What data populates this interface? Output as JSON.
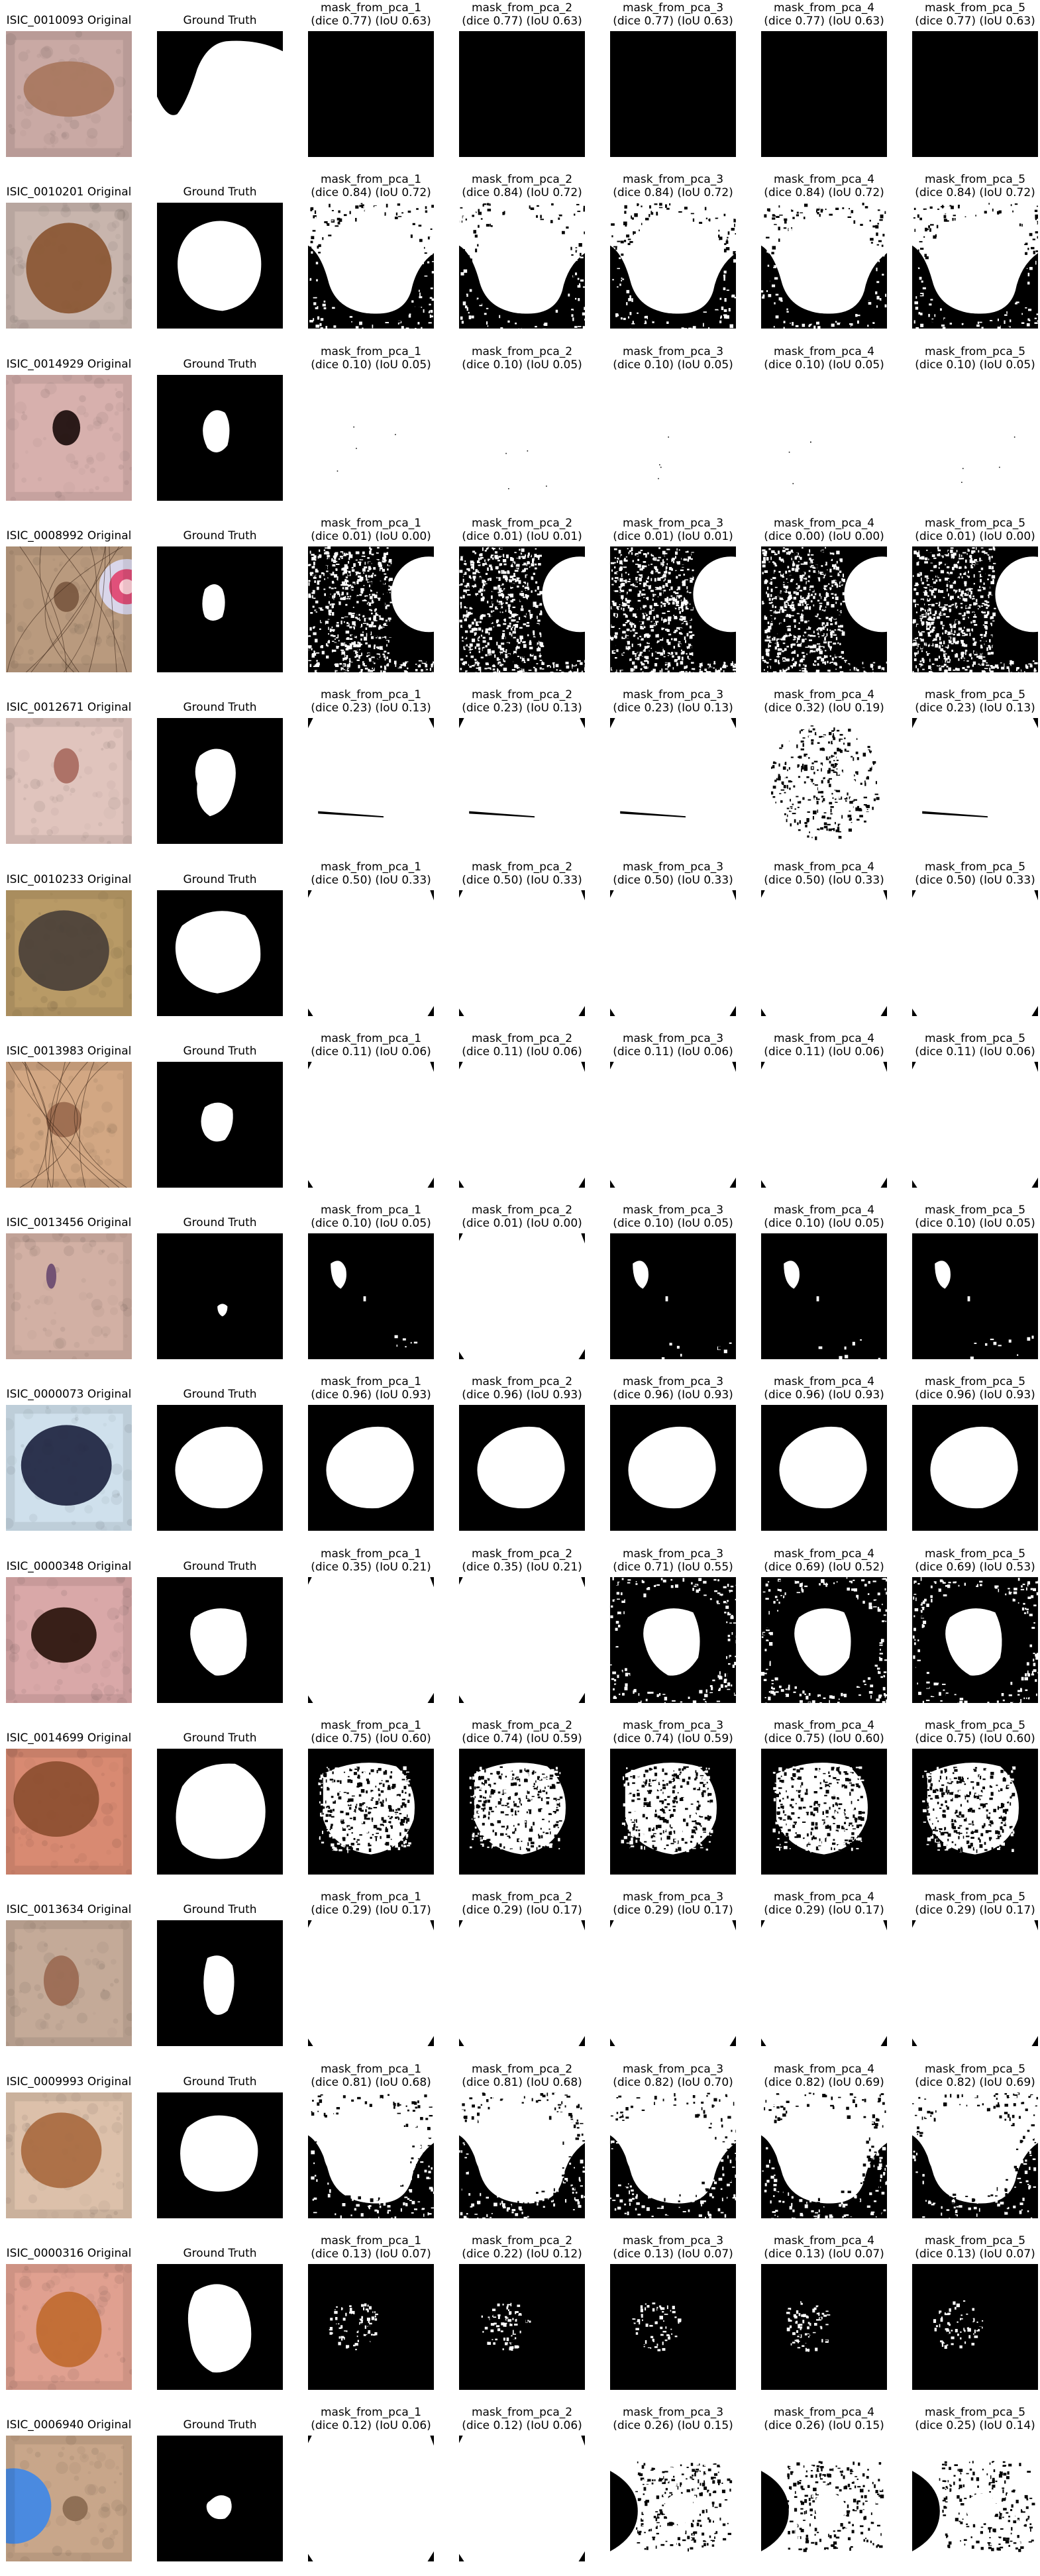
{
  "figure": {
    "gt_label": "Ground Truth",
    "colors": {
      "mask_fg": "#ffffff",
      "mask_bg": "#000000"
    },
    "rows": [
      {
        "id": "ISIC_0010093",
        "original": "ISIC_0010093 Original",
        "skin": "#c9a9a4",
        "lesion": "#a8775e",
        "masks": [
          {
            "name": "mask_from_pca_1",
            "score": "(dice 0.77) (IoU 0.63)"
          },
          {
            "name": "mask_from_pca_2",
            "score": "(dice 0.77) (IoU 0.63)"
          },
          {
            "name": "mask_from_pca_3",
            "score": "(dice 0.77) (IoU 0.63)"
          },
          {
            "name": "mask_from_pca_4",
            "score": "(dice 0.77) (IoU 0.63)"
          },
          {
            "name": "mask_from_pca_5",
            "score": "(dice 0.77) (IoU 0.63)"
          }
        ]
      },
      {
        "id": "ISIC_0010201",
        "original": "ISIC_0010201 Original",
        "skin": "#c8b5ad",
        "lesion": "#8a5632",
        "masks": [
          {
            "name": "mask_from_pca_1",
            "score": "(dice 0.84) (IoU 0.72)"
          },
          {
            "name": "mask_from_pca_2",
            "score": "(dice 0.84) (IoU 0.72)"
          },
          {
            "name": "mask_from_pca_3",
            "score": "(dice 0.84) (IoU 0.72)"
          },
          {
            "name": "mask_from_pca_4",
            "score": "(dice 0.84) (IoU 0.72)"
          },
          {
            "name": "mask_from_pca_5",
            "score": "(dice 0.84) (IoU 0.72)"
          }
        ]
      },
      {
        "id": "ISIC_0014929",
        "original": "ISIC_0014929 Original",
        "skin": "#d7b0ad",
        "lesion": "#1c0d0c",
        "masks": [
          {
            "name": "mask_from_pca_1",
            "score": "(dice 0.10) (IoU 0.05)"
          },
          {
            "name": "mask_from_pca_2",
            "score": "(dice 0.10) (IoU 0.05)"
          },
          {
            "name": "mask_from_pca_3",
            "score": "(dice 0.10) (IoU 0.05)"
          },
          {
            "name": "mask_from_pca_4",
            "score": "(dice 0.10) (IoU 0.05)"
          },
          {
            "name": "mask_from_pca_5",
            "score": "(dice 0.10) (IoU 0.05)"
          }
        ]
      },
      {
        "id": "ISIC_0008992",
        "original": "ISIC_0008992 Original",
        "skin": "#b99a7e",
        "lesion": "#7a5840",
        "masks": [
          {
            "name": "mask_from_pca_1",
            "score": "(dice 0.01) (IoU 0.00)"
          },
          {
            "name": "mask_from_pca_2",
            "score": "(dice 0.01) (IoU 0.01)"
          },
          {
            "name": "mask_from_pca_3",
            "score": "(dice 0.01) (IoU 0.01)"
          },
          {
            "name": "mask_from_pca_4",
            "score": "(dice 0.00) (IoU 0.00)"
          },
          {
            "name": "mask_from_pca_5",
            "score": "(dice 0.01) (IoU 0.00)"
          }
        ]
      },
      {
        "id": "ISIC_0012671",
        "original": "ISIC_0012671 Original",
        "skin": "#e0c4bd",
        "lesion": "#a86a5f",
        "masks": [
          {
            "name": "mask_from_pca_1",
            "score": "(dice 0.23) (IoU 0.13)"
          },
          {
            "name": "mask_from_pca_2",
            "score": "(dice 0.23) (IoU 0.13)"
          },
          {
            "name": "mask_from_pca_3",
            "score": "(dice 0.23) (IoU 0.13)"
          },
          {
            "name": "mask_from_pca_4",
            "score": "(dice 0.32) (IoU 0.19)"
          },
          {
            "name": "mask_from_pca_5",
            "score": "(dice 0.23) (IoU 0.13)"
          }
        ]
      },
      {
        "id": "ISIC_0010233",
        "original": "ISIC_0010233 Original",
        "skin": "#b89a66",
        "lesion": "#4a4038",
        "masks": [
          {
            "name": "mask_from_pca_1",
            "score": "(dice 0.50) (IoU 0.33)"
          },
          {
            "name": "mask_from_pca_2",
            "score": "(dice 0.50) (IoU 0.33)"
          },
          {
            "name": "mask_from_pca_3",
            "score": "(dice 0.50) (IoU 0.33)"
          },
          {
            "name": "mask_from_pca_4",
            "score": "(dice 0.50) (IoU 0.33)"
          },
          {
            "name": "mask_from_pca_5",
            "score": "(dice 0.50) (IoU 0.33)"
          }
        ]
      },
      {
        "id": "ISIC_0013983",
        "original": "ISIC_0013983 Original",
        "skin": "#d2a783",
        "lesion": "#9a6a4e",
        "masks": [
          {
            "name": "mask_from_pca_1",
            "score": "(dice 0.11) (IoU 0.06)"
          },
          {
            "name": "mask_from_pca_2",
            "score": "(dice 0.11) (IoU 0.06)"
          },
          {
            "name": "mask_from_pca_3",
            "score": "(dice 0.11) (IoU 0.06)"
          },
          {
            "name": "mask_from_pca_4",
            "score": "(dice 0.11) (IoU 0.06)"
          },
          {
            "name": "mask_from_pca_5",
            "score": "(dice 0.11) (IoU 0.06)"
          }
        ]
      },
      {
        "id": "ISIC_0013456",
        "original": "ISIC_0013456 Original",
        "skin": "#d2b0a4",
        "lesion": "#6a4a70",
        "masks": [
          {
            "name": "mask_from_pca_1",
            "score": "(dice 0.10) (IoU 0.05)"
          },
          {
            "name": "mask_from_pca_2",
            "score": "(dice 0.01) (IoU 0.00)"
          },
          {
            "name": "mask_from_pca_3",
            "score": "(dice 0.10) (IoU 0.05)"
          },
          {
            "name": "mask_from_pca_4",
            "score": "(dice 0.10) (IoU 0.05)"
          },
          {
            "name": "mask_from_pca_5",
            "score": "(dice 0.10) (IoU 0.05)"
          }
        ]
      },
      {
        "id": "ISIC_0000073",
        "original": "ISIC_0000073 Original",
        "skin": "#cfe0ec",
        "lesion": "#1e2440",
        "masks": [
          {
            "name": "mask_from_pca_1",
            "score": "(dice 0.96) (IoU 0.93)"
          },
          {
            "name": "mask_from_pca_2",
            "score": "(dice 0.96) (IoU 0.93)"
          },
          {
            "name": "mask_from_pca_3",
            "score": "(dice 0.96) (IoU 0.93)"
          },
          {
            "name": "mask_from_pca_4",
            "score": "(dice 0.96) (IoU 0.93)"
          },
          {
            "name": "mask_from_pca_5",
            "score": "(dice 0.96) (IoU 0.93)"
          }
        ]
      },
      {
        "id": "ISIC_0000348",
        "original": "ISIC_0000348 Original",
        "skin": "#d9a8a8",
        "lesion": "#2a140c",
        "masks": [
          {
            "name": "mask_from_pca_1",
            "score": "(dice 0.35) (IoU 0.21)"
          },
          {
            "name": "mask_from_pca_2",
            "score": "(dice 0.35) (IoU 0.21)"
          },
          {
            "name": "mask_from_pca_3",
            "score": "(dice 0.71) (IoU 0.55)"
          },
          {
            "name": "mask_from_pca_4",
            "score": "(dice 0.69) (IoU 0.52)"
          },
          {
            "name": "mask_from_pca_5",
            "score": "(dice 0.69) (IoU 0.53)"
          }
        ]
      },
      {
        "id": "ISIC_0014699",
        "original": "ISIC_0014699 Original",
        "skin": "#d88a72",
        "lesion": "#8c4e30",
        "masks": [
          {
            "name": "mask_from_pca_1",
            "score": "(dice 0.75) (IoU 0.60)"
          },
          {
            "name": "mask_from_pca_2",
            "score": "(dice 0.74) (IoU 0.59)"
          },
          {
            "name": "mask_from_pca_3",
            "score": "(dice 0.74) (IoU 0.59)"
          },
          {
            "name": "mask_from_pca_4",
            "score": "(dice 0.75) (IoU 0.60)"
          },
          {
            "name": "mask_from_pca_5",
            "score": "(dice 0.75) (IoU 0.60)"
          }
        ]
      },
      {
        "id": "ISIC_0013634",
        "original": "ISIC_0013634 Original",
        "skin": "#c4aa98",
        "lesion": "#9a6a52",
        "masks": [
          {
            "name": "mask_from_pca_1",
            "score": "(dice 0.29) (IoU 0.17)"
          },
          {
            "name": "mask_from_pca_2",
            "score": "(dice 0.29) (IoU 0.17)"
          },
          {
            "name": "mask_from_pca_3",
            "score": "(dice 0.29) (IoU 0.17)"
          },
          {
            "name": "mask_from_pca_4",
            "score": "(dice 0.29) (IoU 0.17)"
          },
          {
            "name": "mask_from_pca_5",
            "score": "(dice 0.29) (IoU 0.17)"
          }
        ]
      },
      {
        "id": "ISIC_0009993",
        "original": "ISIC_0009993 Original",
        "skin": "#dcc0aa",
        "lesion": "#a86a40",
        "masks": [
          {
            "name": "mask_from_pca_1",
            "score": "(dice 0.81) (IoU 0.68)"
          },
          {
            "name": "mask_from_pca_2",
            "score": "(dice 0.81) (IoU 0.68)"
          },
          {
            "name": "mask_from_pca_3",
            "score": "(dice 0.82) (IoU 0.70)"
          },
          {
            "name": "mask_from_pca_4",
            "score": "(dice 0.82) (IoU 0.69)"
          },
          {
            "name": "mask_from_pca_5",
            "score": "(dice 0.82) (IoU 0.69)"
          }
        ]
      },
      {
        "id": "ISIC_0000316",
        "original": "ISIC_0000316 Original",
        "skin": "#e0a090",
        "lesion": "#c06a30",
        "masks": [
          {
            "name": "mask_from_pca_1",
            "score": "(dice 0.13) (IoU 0.07)"
          },
          {
            "name": "mask_from_pca_2",
            "score": "(dice 0.22) (IoU 0.12)"
          },
          {
            "name": "mask_from_pca_3",
            "score": "(dice 0.13) (IoU 0.07)"
          },
          {
            "name": "mask_from_pca_4",
            "score": "(dice 0.13) (IoU 0.07)"
          },
          {
            "name": "mask_from_pca_5",
            "score": "(dice 0.13) (IoU 0.07)"
          }
        ]
      },
      {
        "id": "ISIC_0006940",
        "original": "ISIC_0006940 Original",
        "skin": "#c8a68a",
        "lesion": "#8a6a50",
        "masks": [
          {
            "name": "mask_from_pca_1",
            "score": "(dice 0.12) (IoU 0.06)"
          },
          {
            "name": "mask_from_pca_2",
            "score": "(dice 0.12) (IoU 0.06)"
          },
          {
            "name": "mask_from_pca_3",
            "score": "(dice 0.26) (IoU 0.15)"
          },
          {
            "name": "mask_from_pca_4",
            "score": "(dice 0.26) (IoU 0.15)"
          },
          {
            "name": "mask_from_pca_5",
            "score": "(dice 0.25) (IoU 0.14)"
          }
        ]
      }
    ]
  }
}
